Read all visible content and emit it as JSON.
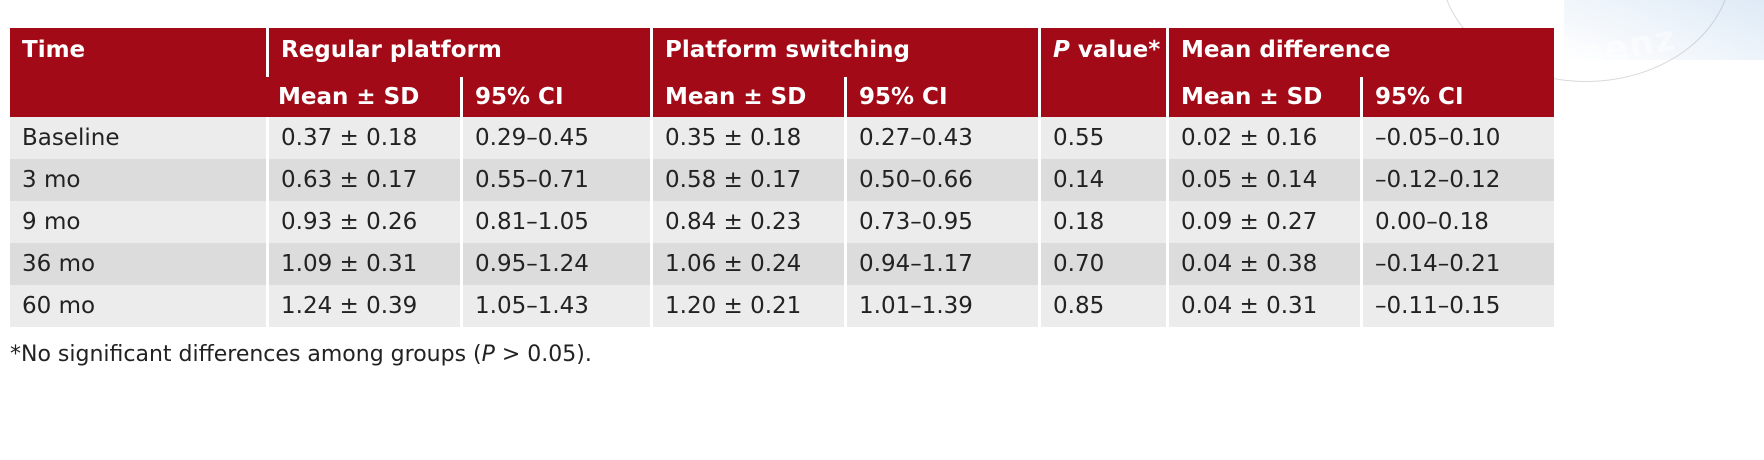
{
  "table": {
    "headers": {
      "time": "Time",
      "regular": "Regular platform",
      "switching": "Platform switching",
      "p_italic": "P",
      "p_rest": " value*",
      "meandiff": "Mean difference",
      "mean_sd": "Mean ± SD",
      "ci": "95% CI"
    },
    "rows": [
      {
        "time": "Baseline",
        "reg_mean": "0.37 ± 0.18",
        "reg_ci": "0.29–0.45",
        "sw_mean": "0.35 ± 0.18",
        "sw_ci": "0.27–0.43",
        "p": "0.55",
        "diff_mean": "0.02 ± 0.16",
        "diff_ci": "–0.05–0.10"
      },
      {
        "time": "3 mo",
        "reg_mean": "0.63 ± 0.17",
        "reg_ci": "0.55–0.71",
        "sw_mean": "0.58 ± 0.17",
        "sw_ci": "0.50–0.66",
        "p": "0.14",
        "diff_mean": "0.05 ± 0.14",
        "diff_ci": "–0.12–0.12"
      },
      {
        "time": "9 mo",
        "reg_mean": "0.93 ± 0.26",
        "reg_ci": "0.81–1.05",
        "sw_mean": "0.84 ± 0.23",
        "sw_ci": "0.73–0.95",
        "p": "0.18",
        "diff_mean": "0.09 ± 0.27",
        "diff_ci": "0.00–0.18"
      },
      {
        "time": "36 mo",
        "reg_mean": "1.09 ± 0.31",
        "reg_ci": "0.95–1.24",
        "sw_mean": "1.06 ± 0.24",
        "sw_ci": "0.94–1.17",
        "p": "0.70",
        "diff_mean": "0.04 ± 0.38",
        "diff_ci": "–0.14–0.21"
      },
      {
        "time": "60 mo",
        "reg_mean": "1.24 ± 0.39",
        "reg_ci": "1.05–1.43",
        "sw_mean": "1.20 ± 0.21",
        "sw_ci": "1.01–1.39",
        "p": "0.85",
        "diff_mean": "0.04 ± 0.31",
        "diff_ci": "–0.11–0.15"
      }
    ]
  },
  "footnote": {
    "prefix": "*No significant differences among groups (",
    "p_italic": "P",
    "suffix": " > 0.05)."
  },
  "watermark": {
    "text": "ssenz"
  },
  "colors": {
    "header_bg": "#a10a16",
    "row_light": "#ececec",
    "row_dark": "#dcdcdc"
  }
}
